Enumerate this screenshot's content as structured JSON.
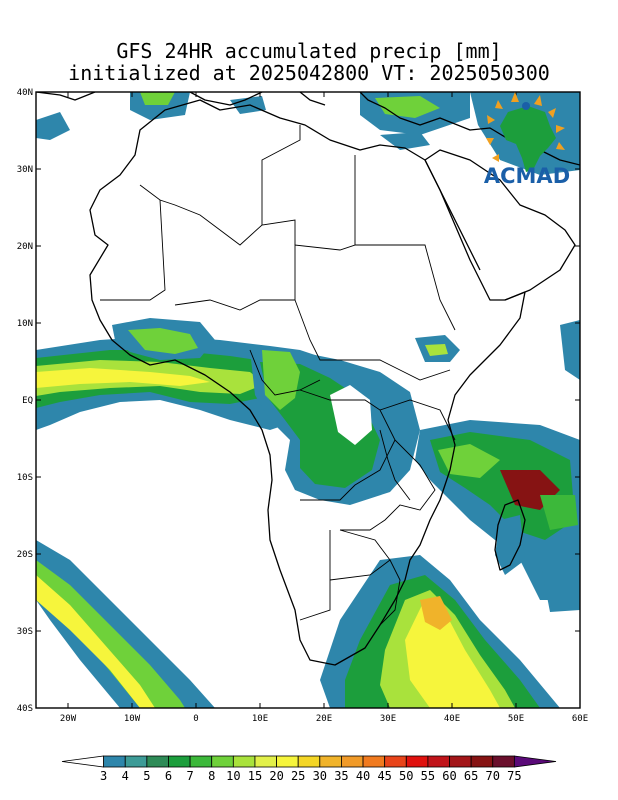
{
  "title": {
    "line1": "GFS 24HR accumulated precip [mm]",
    "line2": "initialized at 2025042800 VT: 2025050300"
  },
  "logo": {
    "text": "ACMAD",
    "color": "#1a5fa8"
  },
  "map": {
    "extent": {
      "lon": [
        -25,
        60
      ],
      "lat": [
        -40,
        40
      ]
    },
    "lat_ticks": [
      {
        "value": 40,
        "label": "40N"
      },
      {
        "value": 30,
        "label": "30N"
      },
      {
        "value": 20,
        "label": "20N"
      },
      {
        "value": 10,
        "label": "10N"
      },
      {
        "value": 0,
        "label": "EQ"
      },
      {
        "value": -10,
        "label": "10S"
      },
      {
        "value": -20,
        "label": "20S"
      },
      {
        "value": -30,
        "label": "30S"
      },
      {
        "value": -40,
        "label": "40S"
      }
    ],
    "lon_ticks": [
      {
        "value": -20,
        "label": "20W"
      },
      {
        "value": -10,
        "label": "10W"
      },
      {
        "value": 0,
        "label": "0"
      },
      {
        "value": 10,
        "label": "10E"
      },
      {
        "value": 20,
        "label": "20E"
      },
      {
        "value": 30,
        "label": "30E"
      },
      {
        "value": 40,
        "label": "40E"
      },
      {
        "value": 50,
        "label": "50E"
      },
      {
        "value": 60,
        "label": "60E"
      }
    ]
  },
  "colorbar": {
    "labels": [
      "3",
      "4",
      "5",
      "6",
      "7",
      "8",
      "10",
      "15",
      "20",
      "25",
      "30",
      "35",
      "40",
      "45",
      "50",
      "55",
      "60",
      "65",
      "70",
      "75"
    ],
    "colors": [
      "#ffffff",
      "#2e86ab",
      "#3d9b97",
      "#2e8b57",
      "#1c9e3c",
      "#3cb83a",
      "#6fd13a",
      "#a9e23c",
      "#e2f04a",
      "#f6f53c",
      "#f4d626",
      "#f0b32a",
      "#f09a28",
      "#f07a1f",
      "#e8441a",
      "#e0110e",
      "#c0141a",
      "#a31619",
      "#861313",
      "#6a0f2c",
      "#5a0a78"
    ]
  }
}
